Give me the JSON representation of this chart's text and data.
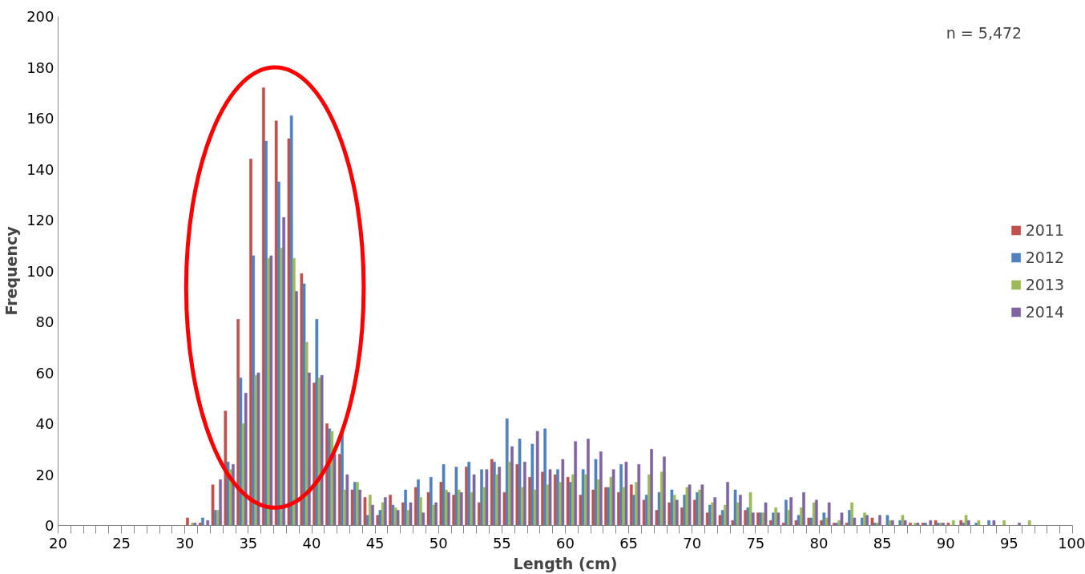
{
  "chart_data": {
    "type": "histogram",
    "xlabel": "Length (cm)",
    "ylabel": "Frequency",
    "annotations": [
      "n = 5,472"
    ],
    "bins": [
      20,
      21,
      22,
      23,
      24,
      25,
      26,
      27,
      28,
      29,
      30,
      31,
      32,
      33,
      34,
      35,
      36,
      37,
      38,
      39,
      40,
      41,
      42,
      43,
      44,
      45,
      46,
      47,
      48,
      49,
      50,
      51,
      52,
      53,
      54,
      55,
      56,
      57,
      58,
      59,
      60,
      61,
      62,
      63,
      64,
      65,
      66,
      67,
      68,
      69,
      70,
      71,
      72,
      73,
      74,
      75,
      76,
      77,
      78,
      79,
      80,
      81,
      82,
      83,
      84,
      85,
      86,
      87,
      88,
      89,
      90,
      91,
      92,
      93,
      94,
      95,
      96,
      97,
      98,
      99,
      100
    ],
    "series": [
      {
        "name": "2011",
        "color": "#c0504d",
        "values": [
          0,
          0,
          0,
          0,
          0,
          0,
          0,
          0,
          0,
          0,
          3,
          1,
          16,
          45,
          81,
          144,
          172,
          159,
          152,
          99,
          56,
          40,
          28,
          14,
          11,
          4,
          12,
          9,
          15,
          13,
          17,
          12,
          23,
          9,
          26,
          13,
          24,
          19,
          21,
          20,
          19,
          12,
          14,
          15,
          13,
          16,
          10,
          6,
          9,
          7,
          10,
          5,
          4,
          2,
          6,
          5,
          2,
          1,
          2,
          3,
          2,
          1,
          1,
          0,
          3,
          0,
          0,
          1,
          1,
          2,
          1,
          2,
          0,
          0,
          0,
          0,
          0,
          0,
          0,
          0
        ]
      },
      {
        "name": "2012",
        "color": "#4f81bd",
        "values": [
          0,
          0,
          0,
          0,
          0,
          0,
          0,
          0,
          0,
          0,
          0,
          3,
          6,
          25,
          58,
          106,
          151,
          135,
          161,
          95,
          81,
          38,
          37,
          17,
          4,
          6,
          8,
          14,
          18,
          19,
          24,
          23,
          25,
          22,
          25,
          42,
          34,
          32,
          38,
          22,
          17,
          22,
          26,
          15,
          24,
          12,
          12,
          13,
          14,
          12,
          13,
          8,
          6,
          14,
          7,
          5,
          5,
          10,
          4,
          3,
          5,
          1,
          6,
          3,
          1,
          4,
          2,
          0,
          1,
          1,
          0,
          1,
          1,
          2,
          0,
          0,
          0,
          0,
          0,
          0
        ]
      },
      {
        "name": "2013",
        "color": "#9bbb59",
        "values": [
          0,
          0,
          0,
          0,
          0,
          0,
          0,
          0,
          0,
          0,
          1,
          0,
          6,
          22,
          40,
          59,
          105,
          109,
          105,
          72,
          58,
          37,
          14,
          17,
          12,
          9,
          7,
          6,
          11,
          8,
          14,
          14,
          13,
          15,
          20,
          25,
          15,
          14,
          16,
          17,
          20,
          20,
          18,
          19,
          15,
          17,
          20,
          21,
          12,
          15,
          14,
          9,
          8,
          9,
          13,
          5,
          7,
          6,
          7,
          9,
          3,
          2,
          9,
          5,
          1,
          2,
          4,
          1,
          0,
          1,
          2,
          4,
          2,
          0,
          2,
          0,
          2,
          0,
          0,
          0
        ]
      },
      {
        "name": "2014",
        "color": "#8064a2",
        "values": [
          0,
          0,
          0,
          0,
          0,
          0,
          0,
          0,
          0,
          0,
          1,
          2,
          18,
          24,
          52,
          60,
          106,
          121,
          92,
          60,
          59,
          28,
          20,
          14,
          8,
          11,
          6,
          9,
          5,
          9,
          13,
          13,
          20,
          22,
          23,
          31,
          25,
          37,
          22,
          26,
          33,
          34,
          29,
          22,
          25,
          24,
          30,
          27,
          10,
          16,
          16,
          11,
          17,
          12,
          5,
          9,
          5,
          11,
          13,
          10,
          9,
          5,
          3,
          4,
          4,
          2,
          2,
          1,
          2,
          1,
          0,
          2,
          0,
          2,
          0,
          1,
          0,
          0,
          0,
          0
        ]
      }
    ],
    "xlim": [
      20,
      100
    ],
    "xticks": [
      20,
      {
        "value": 21,
        "label": null
      },
      {
        "value": 22,
        "label": null
      },
      {
        "value": 23,
        "label": null
      },
      {
        "value": 24,
        "label": null
      },
      25,
      {
        "value": 26,
        "label": null
      },
      {
        "value": 27,
        "label": null
      },
      {
        "value": 28,
        "label": null
      },
      {
        "value": 29,
        "label": null
      },
      30,
      {
        "value": 31,
        "label": null
      },
      {
        "value": 32,
        "label": null
      },
      {
        "value": 33,
        "label": null
      },
      {
        "value": 34,
        "label": null
      },
      35,
      {
        "value": 36,
        "label": null
      },
      {
        "value": 37,
        "label": null
      },
      {
        "value": 38,
        "label": null
      },
      {
        "value": 39,
        "label": null
      },
      40,
      {
        "value": 41,
        "label": null
      },
      {
        "value": 42,
        "label": null
      },
      {
        "value": 43,
        "label": null
      },
      {
        "value": 44,
        "label": null
      },
      45,
      {
        "value": 46,
        "label": null
      },
      {
        "value": 47,
        "label": null
      },
      {
        "value": 48,
        "label": null
      },
      {
        "value": 49,
        "label": null
      },
      50,
      {
        "value": 51,
        "label": null
      },
      {
        "value": 52,
        "label": null
      },
      {
        "value": 53,
        "label": null
      },
      {
        "value": 54,
        "label": null
      },
      55,
      {
        "value": 56,
        "label": null
      },
      {
        "value": 57,
        "label": null
      },
      {
        "value": 58,
        "label": null
      },
      {
        "value": 59,
        "label": null
      },
      60,
      {
        "value": 61,
        "label": null
      },
      {
        "value": 62,
        "label": null
      },
      {
        "value": 63,
        "label": null
      },
      {
        "value": 64,
        "label": null
      },
      65,
      {
        "value": 66,
        "label": null
      },
      {
        "value": 67,
        "label": null
      },
      {
        "value": 68,
        "label": null
      },
      {
        "value": 69,
        "label": null
      },
      70,
      {
        "value": 71,
        "label": null
      },
      {
        "value": 72,
        "label": null
      },
      {
        "value": 73,
        "label": null
      },
      {
        "value": 74,
        "label": null
      },
      75,
      {
        "value": 76,
        "label": null
      },
      {
        "value": 77,
        "label": null
      },
      {
        "value": 78,
        "label": null
      },
      {
        "value": 79,
        "label": null
      },
      80,
      {
        "value": 81,
        "label": null
      },
      {
        "value": 82,
        "label": null
      },
      {
        "value": 83,
        "label": null
      },
      {
        "value": 84,
        "label": null
      },
      85,
      {
        "value": 86,
        "label": null
      },
      {
        "value": 87,
        "label": null
      },
      {
        "value": 88,
        "label": null
      },
      {
        "value": 89,
        "label": null
      },
      90,
      {
        "value": 91,
        "label": null
      },
      {
        "value": 92,
        "label": null
      },
      {
        "value": 93,
        "label": null
      },
      {
        "value": 94,
        "label": null
      },
      95,
      {
        "value": 96,
        "label": null
      },
      {
        "value": 97,
        "label": null
      },
      {
        "value": 98,
        "label": null
      },
      {
        "value": 99,
        "label": null
      },
      100
    ],
    "ylim": [
      0,
      200
    ],
    "yticks": [
      0,
      20,
      40,
      60,
      80,
      100,
      120,
      140,
      160,
      180,
      200
    ],
    "legend": "right",
    "grid": false
  }
}
